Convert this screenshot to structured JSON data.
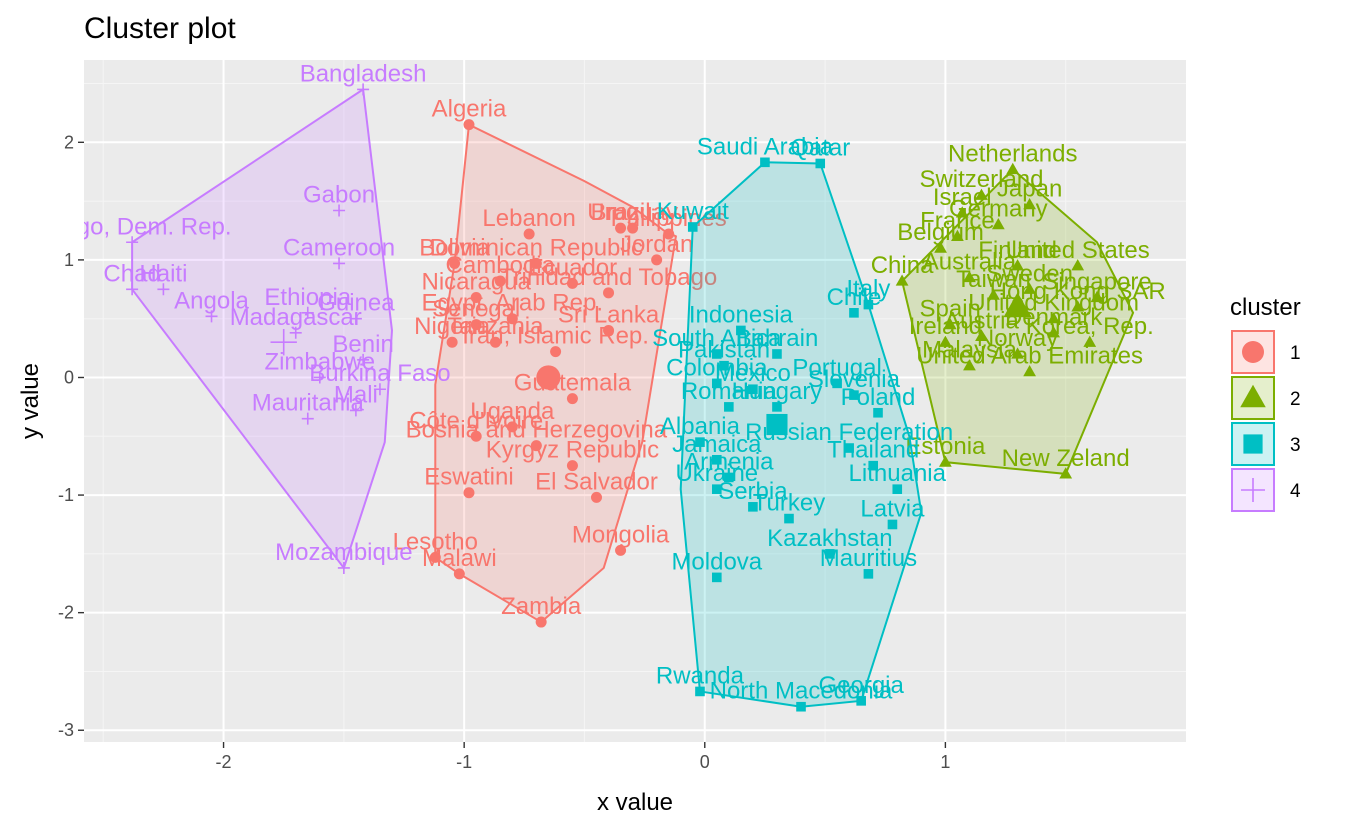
{
  "chart_data": {
    "type": "scatter",
    "title": "Cluster plot",
    "xlabel": "x value",
    "ylabel": "y value",
    "xlim": [
      -2.58,
      2.0
    ],
    "ylim": [
      -3.1,
      2.7
    ],
    "x_ticks": [
      -2,
      -1,
      0,
      1
    ],
    "y_ticks": [
      -3,
      -2,
      -1,
      0,
      1,
      2
    ],
    "grid": true,
    "legend": {
      "title": "cluster",
      "placement": "right"
    },
    "colors": {
      "1": "#F8766D",
      "2": "#7CAE00",
      "3": "#00BFC4",
      "4": "#C77CFF"
    },
    "clusters": [
      {
        "name": "1",
        "centroid": [
          -0.65,
          0.0
        ],
        "hull": [
          [
            -0.98,
            2.15
          ],
          [
            -0.5,
            1.67
          ],
          [
            -0.3,
            1.45
          ],
          [
            -0.17,
            1.25
          ],
          [
            -0.12,
            1.2
          ],
          [
            -0.26,
            -0.55
          ],
          [
            -0.42,
            -1.62
          ],
          [
            -0.68,
            -2.08
          ],
          [
            -1.02,
            -1.67
          ],
          [
            -1.12,
            -1.53
          ],
          [
            -1.12,
            -0.06
          ],
          [
            -1.04,
            0.97
          ]
        ],
        "points": [
          {
            "label": "Algeria",
            "x": -0.98,
            "y": 2.15
          },
          {
            "label": "Lebanon",
            "x": -0.73,
            "y": 1.22
          },
          {
            "label": "Brazil",
            "x": -0.35,
            "y": 1.27
          },
          {
            "label": "Uruguay",
            "x": -0.3,
            "y": 1.27
          },
          {
            "label": "Philippines",
            "x": -0.15,
            "y": 1.22
          },
          {
            "label": "Bolivia",
            "x": -1.04,
            "y": 0.97
          },
          {
            "label": "Jordan",
            "x": -0.2,
            "y": 1.0
          },
          {
            "label": "Dominican Republic",
            "x": -0.7,
            "y": 0.97
          },
          {
            "label": "Ecuador",
            "x": -0.55,
            "y": 0.8
          },
          {
            "label": "Cambodia",
            "x": -0.85,
            "y": 0.82
          },
          {
            "label": "Nicaragua",
            "x": -0.95,
            "y": 0.68
          },
          {
            "label": "Trinidad and Tobago",
            "x": -0.4,
            "y": 0.72
          },
          {
            "label": "Egypt, Arab Rep.",
            "x": -0.8,
            "y": 0.5
          },
          {
            "label": "Senegal",
            "x": -0.95,
            "y": 0.45
          },
          {
            "label": "Nigeria",
            "x": -1.05,
            "y": 0.3
          },
          {
            "label": "Tanzania",
            "x": -0.87,
            "y": 0.3
          },
          {
            "label": "Iran, Islamic Rep.",
            "x": -0.62,
            "y": 0.22
          },
          {
            "label": "Sri Lanka",
            "x": -0.4,
            "y": 0.4
          },
          {
            "label": "Guatemala",
            "x": -0.55,
            "y": -0.18
          },
          {
            "label": "Uganda",
            "x": -0.8,
            "y": -0.42
          },
          {
            "label": "Côte d'Ivoire",
            "x": -0.95,
            "y": -0.5
          },
          {
            "label": "Bosnia and Herzegovina",
            "x": -0.7,
            "y": -0.58
          },
          {
            "label": "Kyrgyz Republic",
            "x": -0.55,
            "y": -0.75
          },
          {
            "label": "Eswatini",
            "x": -0.98,
            "y": -0.98
          },
          {
            "label": "El Salvador",
            "x": -0.45,
            "y": -1.02
          },
          {
            "label": "Lesotho",
            "x": -1.12,
            "y": -1.53
          },
          {
            "label": "Malawi",
            "x": -1.02,
            "y": -1.67
          },
          {
            "label": "Mongolia",
            "x": -0.35,
            "y": -1.47
          },
          {
            "label": "Zambia",
            "x": -0.68,
            "y": -2.08
          }
        ]
      },
      {
        "name": "2",
        "centroid": [
          1.3,
          0.6
        ],
        "hull": [
          [
            1.28,
            1.77
          ],
          [
            1.63,
            1.15
          ],
          [
            1.78,
            0.55
          ],
          [
            1.5,
            -0.82
          ],
          [
            1.0,
            -0.72
          ],
          [
            0.82,
            0.82
          ]
        ],
        "points": [
          {
            "label": "Netherlands",
            "x": 1.28,
            "y": 1.77
          },
          {
            "label": "Switzerland",
            "x": 1.15,
            "y": 1.55
          },
          {
            "label": "Japan",
            "x": 1.35,
            "y": 1.47
          },
          {
            "label": "Israel",
            "x": 1.07,
            "y": 1.4
          },
          {
            "label": "Germany",
            "x": 1.22,
            "y": 1.3
          },
          {
            "label": "France",
            "x": 1.05,
            "y": 1.2
          },
          {
            "label": "Belgium",
            "x": 0.98,
            "y": 1.1
          },
          {
            "label": "Finland",
            "x": 1.3,
            "y": 0.95
          },
          {
            "label": "United States",
            "x": 1.55,
            "y": 0.95
          },
          {
            "label": "China",
            "x": 0.82,
            "y": 0.82
          },
          {
            "label": "Australia",
            "x": 1.1,
            "y": 0.85
          },
          {
            "label": "Taiwan",
            "x": 1.2,
            "y": 0.7
          },
          {
            "label": "Sweden",
            "x": 1.35,
            "y": 0.75
          },
          {
            "label": "Singapore",
            "x": 1.63,
            "y": 0.68
          },
          {
            "label": "Hong Kong SAR",
            "x": 1.55,
            "y": 0.6
          },
          {
            "label": "United Kingdom",
            "x": 1.45,
            "y": 0.5
          },
          {
            "label": "Spain",
            "x": 1.02,
            "y": 0.45
          },
          {
            "label": "Austria",
            "x": 1.15,
            "y": 0.35
          },
          {
            "label": "Denmark",
            "x": 1.45,
            "y": 0.38
          },
          {
            "label": "Ireland",
            "x": 1.0,
            "y": 0.3
          },
          {
            "label": "Korea, Rep.",
            "x": 1.6,
            "y": 0.3
          },
          {
            "label": "Norway",
            "x": 1.3,
            "y": 0.2
          },
          {
            "label": "Malaysia",
            "x": 1.1,
            "y": 0.1
          },
          {
            "label": "United Arab Emirates",
            "x": 1.35,
            "y": 0.05
          },
          {
            "label": "Estonia",
            "x": 1.0,
            "y": -0.72
          },
          {
            "label": "New Zeland",
            "x": 1.5,
            "y": -0.82
          }
        ]
      },
      {
        "name": "3",
        "centroid": [
          0.3,
          -0.4
        ],
        "hull": [
          [
            0.25,
            1.83
          ],
          [
            0.48,
            1.82
          ],
          [
            0.68,
            0.62
          ],
          [
            0.85,
            -0.5
          ],
          [
            0.9,
            -1.15
          ],
          [
            0.65,
            -2.75
          ],
          [
            0.4,
            -2.8
          ],
          [
            -0.02,
            -2.67
          ],
          [
            -0.1,
            -0.95
          ],
          [
            -0.05,
            1.28
          ]
        ],
        "points": [
          {
            "label": "Saudi Arabia",
            "x": 0.25,
            "y": 1.83
          },
          {
            "label": "Qatar",
            "x": 0.48,
            "y": 1.82
          },
          {
            "label": "Kuwait",
            "x": -0.05,
            "y": 1.28
          },
          {
            "label": "Italy",
            "x": 0.68,
            "y": 0.62
          },
          {
            "label": "Chile",
            "x": 0.62,
            "y": 0.55
          },
          {
            "label": "Indonesia",
            "x": 0.15,
            "y": 0.4
          },
          {
            "label": "South Africa",
            "x": 0.05,
            "y": 0.2
          },
          {
            "label": "Bahrain",
            "x": 0.3,
            "y": 0.2
          },
          {
            "label": "Pakistan",
            "x": 0.08,
            "y": 0.1
          },
          {
            "label": "Colombia",
            "x": 0.05,
            "y": -0.05
          },
          {
            "label": "Mexico",
            "x": 0.2,
            "y": -0.1
          },
          {
            "label": "Portugal",
            "x": 0.55,
            "y": -0.05
          },
          {
            "label": "Slovenia",
            "x": 0.62,
            "y": -0.15
          },
          {
            "label": "Romania",
            "x": 0.1,
            "y": -0.25
          },
          {
            "label": "Hungary",
            "x": 0.3,
            "y": -0.25
          },
          {
            "label": "Poland",
            "x": 0.72,
            "y": -0.3
          },
          {
            "label": "Albania",
            "x": -0.02,
            "y": -0.55
          },
          {
            "label": "Jamaica",
            "x": 0.05,
            "y": -0.7
          },
          {
            "label": "Armenia",
            "x": 0.1,
            "y": -0.85
          },
          {
            "label": "Ukraine",
            "x": 0.05,
            "y": -0.95
          },
          {
            "label": "Russian Federation",
            "x": 0.6,
            "y": -0.6
          },
          {
            "label": "Thailand",
            "x": 0.7,
            "y": -0.75
          },
          {
            "label": "Serbia",
            "x": 0.2,
            "y": -1.1
          },
          {
            "label": "Turkey",
            "x": 0.35,
            "y": -1.2
          },
          {
            "label": "Lithuania",
            "x": 0.8,
            "y": -0.95
          },
          {
            "label": "Latvia",
            "x": 0.78,
            "y": -1.25
          },
          {
            "label": "Kazakhstan",
            "x": 0.52,
            "y": -1.5
          },
          {
            "label": "Mauritius",
            "x": 0.68,
            "y": -1.67
          },
          {
            "label": "Moldova",
            "x": 0.05,
            "y": -1.7
          },
          {
            "label": "Rwanda",
            "x": -0.02,
            "y": -2.67
          },
          {
            "label": "North Macedonia",
            "x": 0.4,
            "y": -2.8
          },
          {
            "label": "Georgia",
            "x": 0.65,
            "y": -2.75
          }
        ]
      },
      {
        "name": "4",
        "centroid": [
          -1.75,
          0.3
        ],
        "hull": [
          [
            -2.38,
            1.15
          ],
          [
            -1.42,
            2.45
          ],
          [
            -1.3,
            0.4
          ],
          [
            -1.33,
            -0.55
          ],
          [
            -1.5,
            -1.62
          ],
          [
            -2.38,
            0.75
          ]
        ],
        "points": [
          {
            "label": "Bangladesh",
            "x": -1.42,
            "y": 2.45
          },
          {
            "label": "Gabon",
            "x": -1.52,
            "y": 1.42
          },
          {
            "label": "Congo, Dem. Rep.",
            "x": -2.38,
            "y": 1.15
          },
          {
            "label": "Cameroon",
            "x": -1.52,
            "y": 0.97
          },
          {
            "label": "Chad",
            "x": -2.38,
            "y": 0.75
          },
          {
            "label": "Haiti",
            "x": -2.25,
            "y": 0.75
          },
          {
            "label": "Angola",
            "x": -2.05,
            "y": 0.52
          },
          {
            "label": "Ethiopia",
            "x": -1.65,
            "y": 0.55
          },
          {
            "label": "Guinea",
            "x": -1.45,
            "y": 0.5
          },
          {
            "label": "Madagascar",
            "x": -1.7,
            "y": 0.38
          },
          {
            "label": "Benin",
            "x": -1.42,
            "y": 0.15
          },
          {
            "label": "Zimbabwe",
            "x": -1.6,
            "y": 0.0
          },
          {
            "label": "Burkina Faso",
            "x": -1.35,
            "y": -0.1
          },
          {
            "label": "Mauritania",
            "x": -1.65,
            "y": -0.35
          },
          {
            "label": "Mali",
            "x": -1.45,
            "y": -0.28
          },
          {
            "label": "Mozambique",
            "x": -1.5,
            "y": -1.62
          }
        ]
      }
    ]
  }
}
